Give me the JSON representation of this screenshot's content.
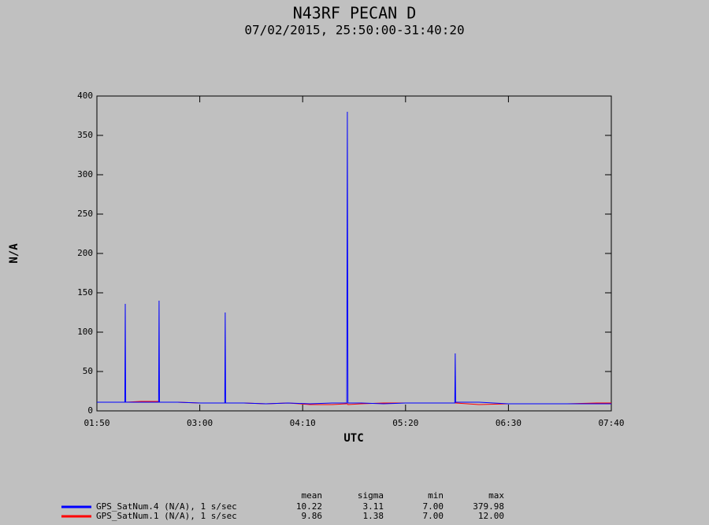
{
  "chart_data": {
    "type": "line",
    "title": "N43RF PECAN D",
    "subtitle": "07/02/2015, 25:50:00-31:40:20",
    "x_label": "UTC",
    "y_label": "N/A",
    "x": [
      110,
      120,
      129,
      129.3,
      129.6,
      140,
      152,
      152.3,
      152.6,
      165,
      180,
      197,
      197.3,
      197.6,
      210,
      225,
      240,
      255,
      270,
      280,
      280.4,
      280.8,
      290,
      305,
      320,
      335,
      353.5,
      353.8,
      354.1,
      370,
      390,
      410,
      430,
      450,
      460
    ],
    "series": [
      {
        "name": "GPS_SatNum.4 (N/A), 1 s/sec",
        "color": "#0000ff",
        "values": [
          11,
          11,
          11,
          136,
          11,
          11,
          11,
          140,
          11,
          11,
          10,
          10,
          125,
          10,
          10,
          9,
          10,
          9,
          10,
          10,
          379.98,
          10,
          10,
          9,
          10,
          10,
          10,
          73,
          11,
          11,
          9,
          9,
          9,
          9,
          9
        ]
      },
      {
        "name": "GPS_SatNum.1 (N/A), 1 s/sec",
        "color": "#ff0000",
        "values": [
          11,
          11,
          11,
          11,
          11,
          12,
          12,
          11,
          11,
          11,
          10,
          10,
          10,
          10,
          10,
          9,
          10,
          8,
          8,
          9,
          9,
          8,
          9,
          10,
          10,
          10,
          10,
          10,
          10,
          8,
          9,
          9,
          9,
          10,
          10
        ]
      }
    ],
    "xlim": [
      110,
      460
    ],
    "xticks": [
      {
        "value": 110,
        "label": "01:50"
      },
      {
        "value": 180,
        "label": "03:00"
      },
      {
        "value": 250,
        "label": "04:10"
      },
      {
        "value": 320,
        "label": "05:20"
      },
      {
        "value": 390,
        "label": "06:30"
      },
      {
        "value": 460,
        "label": "07:40"
      }
    ],
    "ylim": [
      0,
      400
    ],
    "yticks": [
      0,
      50,
      100,
      150,
      200,
      250,
      300,
      350,
      400
    ],
    "stats": {
      "columns": [
        "mean",
        "sigma",
        "min",
        "max"
      ],
      "rows": [
        [
          "10.22",
          "3.11",
          "7.00",
          "379.98"
        ],
        [
          "9.86",
          "1.38",
          "7.00",
          "12.00"
        ]
      ]
    }
  }
}
